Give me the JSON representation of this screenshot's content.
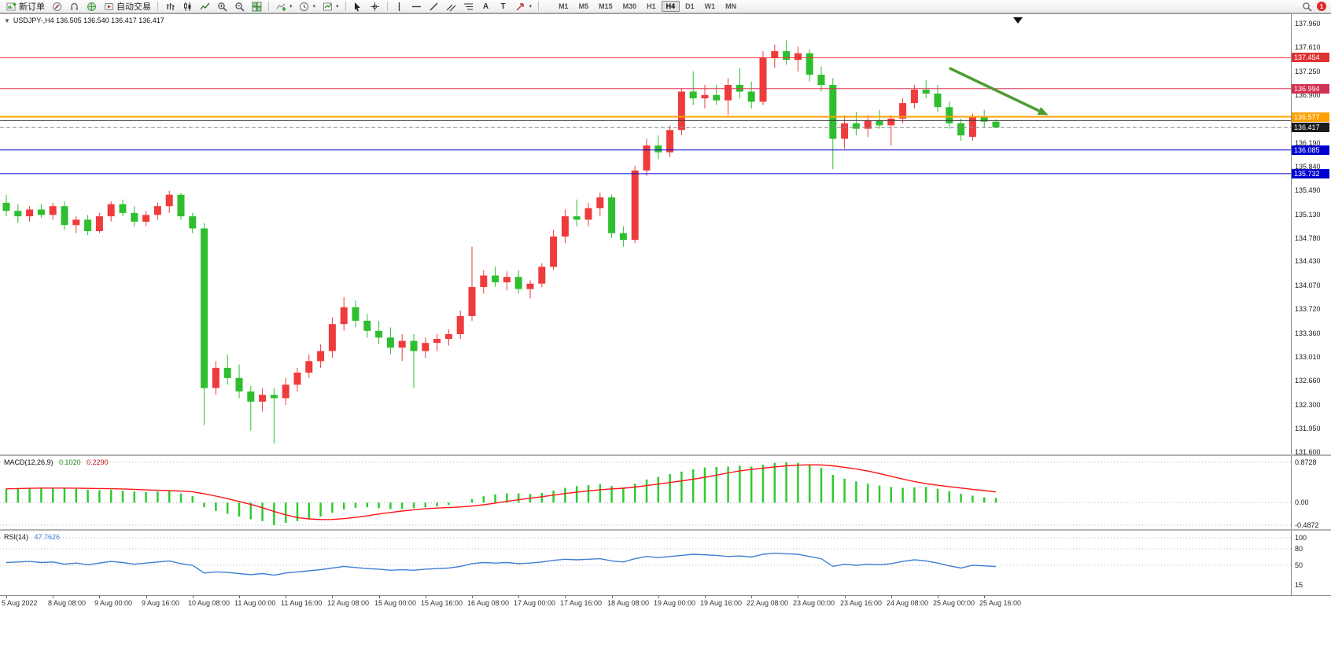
{
  "toolbar": {
    "buttons": {
      "new_order": "新订单",
      "autotrading": "自动交易"
    },
    "timeframes": [
      "M1",
      "M5",
      "M15",
      "M30",
      "H1",
      "H4",
      "D1",
      "W1",
      "MN"
    ],
    "active_timeframe": "H4",
    "notification_badge": "1"
  },
  "chart_header": {
    "text": "USDJPY-,H4 136.505 136.540 136.417 136.417"
  },
  "macd_header": {
    "label": "MACD(12,26,9)",
    "macd_value": "0.1020",
    "signal_value": "0.2290"
  },
  "rsi_header": {
    "label": "RSI(14)",
    "value": "47.7626"
  },
  "colors": {
    "up": "#ef3b3b",
    "down": "#2ebe2e",
    "macd_hist": "#2fca2f",
    "macd_signal": "#ff1414",
    "rsi_line": "#3f7fd4",
    "arrow": "#4e9b30"
  },
  "chart_data": [
    {
      "type": "candlestick",
      "symbol": "USDJPY-",
      "timeframe": "H4",
      "ylim": [
        131.6,
        137.96
      ],
      "y_ticks": [
        "137.960",
        "137.610",
        "137.250",
        "136.900",
        "136.540",
        "136.190",
        "135.840",
        "135.490",
        "135.130",
        "134.780",
        "134.430",
        "134.070",
        "133.720",
        "133.360",
        "133.010",
        "132.660",
        "132.300",
        "131.950",
        "131.600"
      ],
      "x_ticks": [
        {
          "bar": 0,
          "label": "5 Aug 2022"
        },
        {
          "bar": 4,
          "label": "8 Aug 08:00"
        },
        {
          "bar": 8,
          "label": "9 Aug 00:00"
        },
        {
          "bar": 12,
          "label": "9 Aug 16:00"
        },
        {
          "bar": 16,
          "label": "10 Aug 08:00"
        },
        {
          "bar": 20,
          "label": "11 Aug 00:00"
        },
        {
          "bar": 24,
          "label": "11 Aug 16:00"
        },
        {
          "bar": 28,
          "label": "12 Aug 08:00"
        },
        {
          "bar": 32,
          "label": "15 Aug 00:00"
        },
        {
          "bar": 36,
          "label": "15 Aug 16:00"
        },
        {
          "bar": 40,
          "label": "16 Aug 08:00"
        },
        {
          "bar": 44,
          "label": "17 Aug 00:00"
        },
        {
          "bar": 48,
          "label": "17 Aug 16:00"
        },
        {
          "bar": 52,
          "label": "18 Aug 08:00"
        },
        {
          "bar": 56,
          "label": "19 Aug 00:00"
        },
        {
          "bar": 60,
          "label": "19 Aug 16:00"
        },
        {
          "bar": 64,
          "label": "22 Aug 08:00"
        },
        {
          "bar": 68,
          "label": "23 Aug 00:00"
        },
        {
          "bar": 72,
          "label": "23 Aug 16:00"
        },
        {
          "bar": 76,
          "label": "24 Aug 08:00"
        },
        {
          "bar": 80,
          "label": "25 Aug 00:00"
        },
        {
          "bar": 84,
          "label": "25 Aug 16:00"
        }
      ],
      "ohlc": [
        [
          135.3,
          135.42,
          135.1,
          135.18
        ],
        [
          135.18,
          135.28,
          135.0,
          135.1
        ],
        [
          135.1,
          135.25,
          135.02,
          135.2
        ],
        [
          135.2,
          135.28,
          135.08,
          135.12
        ],
        [
          135.12,
          135.3,
          135.05,
          135.25
        ],
        [
          135.25,
          135.32,
          134.9,
          134.97
        ],
        [
          134.97,
          135.1,
          134.85,
          135.05
        ],
        [
          135.05,
          135.12,
          134.82,
          134.88
        ],
        [
          134.88,
          135.15,
          134.85,
          135.1
        ],
        [
          135.1,
          135.32,
          135.02,
          135.28
        ],
        [
          135.28,
          135.35,
          135.1,
          135.15
        ],
        [
          135.15,
          135.25,
          134.95,
          135.02
        ],
        [
          135.02,
          135.18,
          134.95,
          135.12
        ],
        [
          135.12,
          135.3,
          135.05,
          135.25
        ],
        [
          135.25,
          135.48,
          135.15,
          135.42
        ],
        [
          135.42,
          135.45,
          135.05,
          135.1
        ],
        [
          135.1,
          135.15,
          134.85,
          134.92
        ],
        [
          134.92,
          135.0,
          132.0,
          132.55
        ],
        [
          132.55,
          132.95,
          132.45,
          132.85
        ],
        [
          132.85,
          133.05,
          132.6,
          132.7
        ],
        [
          132.7,
          132.9,
          132.4,
          132.5
        ],
        [
          132.5,
          132.58,
          131.92,
          132.35
        ],
        [
          132.35,
          132.55,
          132.2,
          132.45
        ],
        [
          132.45,
          132.55,
          131.73,
          132.4
        ],
        [
          132.4,
          132.7,
          132.3,
          132.6
        ],
        [
          132.6,
          132.85,
          132.5,
          132.78
        ],
        [
          132.78,
          133.05,
          132.7,
          132.95
        ],
        [
          132.95,
          133.2,
          132.85,
          133.1
        ],
        [
          133.1,
          133.6,
          133.0,
          133.5
        ],
        [
          133.5,
          133.9,
          133.4,
          133.75
        ],
        [
          133.75,
          133.85,
          133.45,
          133.55
        ],
        [
          133.55,
          133.65,
          133.3,
          133.4
        ],
        [
          133.4,
          133.55,
          133.2,
          133.3
        ],
        [
          133.3,
          133.45,
          133.05,
          133.15
        ],
        [
          133.15,
          133.35,
          132.95,
          133.25
        ],
        [
          133.25,
          133.35,
          132.55,
          133.1
        ],
        [
          133.1,
          133.3,
          133.0,
          133.22
        ],
        [
          133.22,
          133.35,
          133.1,
          133.28
        ],
        [
          133.28,
          133.42,
          133.18,
          133.35
        ],
        [
          133.35,
          133.7,
          133.28,
          133.62
        ],
        [
          133.62,
          134.65,
          133.55,
          134.05
        ],
        [
          134.05,
          134.3,
          133.95,
          134.22
        ],
        [
          134.22,
          134.35,
          134.05,
          134.12
        ],
        [
          134.12,
          134.28,
          134.0,
          134.2
        ],
        [
          134.2,
          134.3,
          133.95,
          134.02
        ],
        [
          134.02,
          134.15,
          133.88,
          134.1
        ],
        [
          134.1,
          134.4,
          134.05,
          134.35
        ],
        [
          134.35,
          134.9,
          134.3,
          134.8
        ],
        [
          134.8,
          135.2,
          134.7,
          135.1
        ],
        [
          135.1,
          135.35,
          134.95,
          135.05
        ],
        [
          135.05,
          135.3,
          134.95,
          135.22
        ],
        [
          135.22,
          135.45,
          135.1,
          135.38
        ],
        [
          135.38,
          135.42,
          134.78,
          134.85
        ],
        [
          134.85,
          134.95,
          134.65,
          134.75
        ],
        [
          134.75,
          135.85,
          134.7,
          135.78
        ],
        [
          135.78,
          136.25,
          135.7,
          136.15
        ],
        [
          136.15,
          136.3,
          135.95,
          136.05
        ],
        [
          136.05,
          136.45,
          135.98,
          136.38
        ],
        [
          136.38,
          137.0,
          136.3,
          136.95
        ],
        [
          136.95,
          137.25,
          136.75,
          136.85
        ],
        [
          136.85,
          137.05,
          136.7,
          136.9
        ],
        [
          136.9,
          137.05,
          136.75,
          136.82
        ],
        [
          136.82,
          137.15,
          136.6,
          137.05
        ],
        [
          137.05,
          137.3,
          136.85,
          136.95
        ],
        [
          136.95,
          137.1,
          136.7,
          136.8
        ],
        [
          136.8,
          137.55,
          136.75,
          137.45
        ],
        [
          137.45,
          137.65,
          137.3,
          137.55
        ],
        [
          137.55,
          137.71,
          137.35,
          137.42
        ],
        [
          137.42,
          137.62,
          137.25,
          137.52
        ],
        [
          137.52,
          137.58,
          137.1,
          137.2
        ],
        [
          137.2,
          137.32,
          136.95,
          137.05
        ],
        [
          137.05,
          137.15,
          135.8,
          136.25
        ],
        [
          136.25,
          136.6,
          136.1,
          136.48
        ],
        [
          136.48,
          136.65,
          136.3,
          136.4
        ],
        [
          136.4,
          136.6,
          136.28,
          136.52
        ],
        [
          136.52,
          136.68,
          136.4,
          136.45
        ],
        [
          136.45,
          136.6,
          136.15,
          136.55
        ],
        [
          136.55,
          136.85,
          136.48,
          136.78
        ],
        [
          136.78,
          137.05,
          136.7,
          136.98
        ],
        [
          136.98,
          137.12,
          136.85,
          136.92
        ],
        [
          136.92,
          137.05,
          136.65,
          136.72
        ],
        [
          136.72,
          136.8,
          136.4,
          136.48
        ],
        [
          136.48,
          136.55,
          136.22,
          136.3
        ],
        [
          136.28,
          136.62,
          136.22,
          136.58
        ],
        [
          136.58,
          136.68,
          136.42,
          136.505
        ],
        [
          136.505,
          136.54,
          136.417,
          136.417
        ]
      ],
      "hlines": [
        {
          "price": 137.454,
          "color": "#ff3232",
          "width": 1,
          "badge": "137.454",
          "badge_bg": "#e03232"
        },
        {
          "price": 136.994,
          "color": "#e03255",
          "width": 1,
          "badge": "136.994",
          "badge_bg": "#d43050"
        },
        {
          "price": 136.577,
          "color": "#ffa000",
          "width": 2,
          "badge": "136.577",
          "badge_bg": "#ffa000"
        },
        {
          "price": 136.52,
          "color": "#3c3c3c",
          "width": 1
        },
        {
          "price": 136.417,
          "color": "#8a8a8a",
          "width": 1,
          "dash": true,
          "badge": "136.417",
          "badge_bg": "#1a1a1a"
        },
        {
          "price": 136.085,
          "color": "#0000d0",
          "width": 1,
          "badge": "136.085",
          "badge_bg": "#0000d0"
        },
        {
          "price": 135.732,
          "color": "#0000d0",
          "width": 1,
          "badge": "135.732",
          "badge_bg": "#0000d0"
        }
      ],
      "arrow_annotation": {
        "from_bar": 81,
        "from_price": 137.3,
        "to_bar": 89.5,
        "to_price": 136.6
      }
    },
    {
      "type": "bar",
      "name": "MACD(12,26,9)",
      "current_values": [
        0.102,
        0.229
      ],
      "ylim": [
        -0.4872,
        0.8728
      ],
      "y_ticks": [
        "0.8728",
        "0.00",
        "-0.4872"
      ],
      "signal_period": 9,
      "values": [
        0.3,
        0.31,
        0.32,
        0.33,
        0.32,
        0.31,
        0.3,
        0.28,
        0.27,
        0.28,
        0.26,
        0.24,
        0.23,
        0.24,
        0.25,
        0.2,
        0.14,
        -0.1,
        -0.18,
        -0.24,
        -0.3,
        -0.36,
        -0.4,
        -0.4872,
        -0.44,
        -0.4,
        -0.36,
        -0.3,
        -0.22,
        -0.15,
        -0.11,
        -0.1,
        -0.12,
        -0.14,
        -0.13,
        -0.12,
        -0.1,
        -0.08,
        -0.05,
        0.0,
        0.08,
        0.14,
        0.18,
        0.2,
        0.2,
        0.19,
        0.21,
        0.26,
        0.32,
        0.36,
        0.38,
        0.4,
        0.36,
        0.33,
        0.41,
        0.5,
        0.56,
        0.62,
        0.67,
        0.72,
        0.76,
        0.77,
        0.78,
        0.8,
        0.78,
        0.82,
        0.86,
        0.8728,
        0.86,
        0.82,
        0.75,
        0.6,
        0.52,
        0.46,
        0.41,
        0.37,
        0.34,
        0.32,
        0.33,
        0.34,
        0.3,
        0.25,
        0.19,
        0.15,
        0.12,
        0.102
      ]
    },
    {
      "type": "line",
      "name": "RSI(14)",
      "current_value": 47.7626,
      "ylim": [
        0,
        100
      ],
      "y_ticks": [
        "100",
        "80",
        "50",
        "15"
      ],
      "levels": [
        100,
        80,
        50
      ],
      "values": [
        55,
        56,
        57,
        55,
        56,
        52,
        54,
        51,
        54,
        57,
        55,
        52,
        54,
        56,
        58,
        53,
        50,
        36,
        38,
        37,
        35,
        33,
        35,
        32,
        36,
        38,
        40,
        42,
        45,
        48,
        46,
        44,
        43,
        41,
        42,
        41,
        43,
        44,
        45,
        48,
        53,
        55,
        54,
        55,
        53,
        54,
        56,
        59,
        61,
        60,
        61,
        62,
        58,
        56,
        62,
        66,
        64,
        66,
        68,
        70,
        69,
        68,
        66,
        67,
        65,
        70,
        72,
        71,
        70,
        66,
        62,
        48,
        52,
        50,
        52,
        51,
        53,
        57,
        60,
        58,
        54,
        49,
        45,
        50,
        49,
        47.7626
      ]
    }
  ]
}
